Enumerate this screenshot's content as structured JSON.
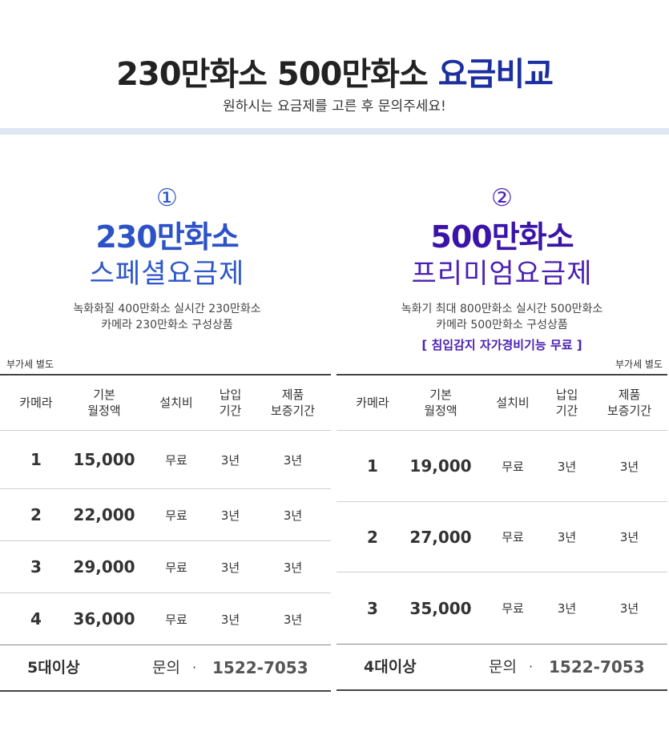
{
  "header": {
    "title_prefix": "230만화소 500만화소 ",
    "title_accent": "요금비교",
    "subtitle": "원하시는 요금제를 고른 후 문의주세요!"
  },
  "colors": {
    "accent_navy": "#1c2fa0",
    "plan1_blue": "#2d52c8",
    "plan2_purple": "#3a14a8",
    "band": "#dfe7f3"
  },
  "plans": [
    {
      "number": "①",
      "name": "230만화소",
      "subname": "스페셜요금제",
      "desc_line1": "녹화화질 400만화소 실시간 230만화소",
      "desc_line2": "카메라 230만화소 구성상품",
      "extra": "",
      "vat_note": "부가세 별도",
      "headers": [
        "카메라",
        "기본\n월정액",
        "설치비",
        "납입\n기간",
        "제품\n보증기간"
      ],
      "rows": [
        {
          "camera": "1",
          "fee": "15,000",
          "install": "무료",
          "term": "3년",
          "warranty": "3년"
        },
        {
          "camera": "2",
          "fee": "22,000",
          "install": "무료",
          "term": "3년",
          "warranty": "3년"
        },
        {
          "camera": "3",
          "fee": "29,000",
          "install": "무료",
          "term": "3년",
          "warranty": "3년"
        },
        {
          "camera": "4",
          "fee": "36,000",
          "install": "무료",
          "term": "3년",
          "warranty": "3년"
        }
      ],
      "footer": {
        "qty": "5대이상",
        "inquiry": "문의",
        "dot": "·",
        "phone": "1522-7053"
      }
    },
    {
      "number": "②",
      "name": "500만화소",
      "subname": "프리미엄요금제",
      "desc_line1": "녹화기 최대 800만화소 실시간 500만화소",
      "desc_line2": "카메라 500만화소 구성상품",
      "extra": "[ 침입감지 자가경비기능 무료 ]",
      "vat_note": "부가세 별도",
      "headers": [
        "카메라",
        "기본\n월정액",
        "설치비",
        "납입\n기간",
        "제품\n보증기간"
      ],
      "rows": [
        {
          "camera": "1",
          "fee": "19,000",
          "install": "무료",
          "term": "3년",
          "warranty": "3년"
        },
        {
          "camera": "2",
          "fee": "27,000",
          "install": "무료",
          "term": "3년",
          "warranty": "3년"
        },
        {
          "camera": "3",
          "fee": "35,000",
          "install": "무료",
          "term": "3년",
          "warranty": "3년"
        }
      ],
      "footer": {
        "qty": "4대이상",
        "inquiry": "문의",
        "dot": "·",
        "phone": "1522-7053"
      }
    }
  ]
}
